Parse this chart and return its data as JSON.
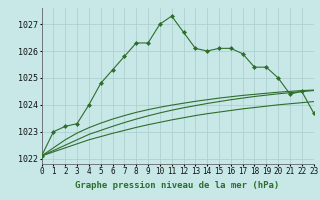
{
  "title": "Graphe pression niveau de la mer (hPa)",
  "background_color": "#c8e8e8",
  "grid_color": "#aacccc",
  "line_color": "#2d6e2d",
  "hours": [
    0,
    1,
    2,
    3,
    4,
    5,
    6,
    7,
    8,
    9,
    10,
    11,
    12,
    13,
    14,
    15,
    16,
    17,
    18,
    19,
    20,
    21,
    22,
    23
  ],
  "line_main": [
    1022.1,
    1023.0,
    1023.2,
    1023.3,
    1024.0,
    1024.8,
    1025.3,
    1025.8,
    1026.3,
    1026.3,
    1027.0,
    1027.3,
    1026.7,
    1026.1,
    1026.0,
    1026.1,
    1026.1,
    1025.9,
    1025.4,
    1025.4,
    1025.0,
    1024.4,
    1024.5,
    1023.7
  ],
  "line_ref1": [
    1022.1,
    1022.25,
    1022.4,
    1022.55,
    1022.7,
    1022.82,
    1022.94,
    1023.05,
    1023.16,
    1023.26,
    1023.35,
    1023.44,
    1023.52,
    1023.6,
    1023.67,
    1023.73,
    1023.79,
    1023.85,
    1023.9,
    1023.95,
    1024.0,
    1024.04,
    1024.08,
    1024.12
  ],
  "line_ref2": [
    1022.1,
    1022.3,
    1022.5,
    1022.7,
    1022.9,
    1023.05,
    1023.2,
    1023.34,
    1023.47,
    1023.59,
    1023.7,
    1023.8,
    1023.89,
    1023.97,
    1024.05,
    1024.12,
    1024.19,
    1024.25,
    1024.31,
    1024.36,
    1024.41,
    1024.45,
    1024.49,
    1024.53
  ],
  "line_ref3": [
    1022.1,
    1022.4,
    1022.7,
    1022.95,
    1023.15,
    1023.32,
    1023.47,
    1023.6,
    1023.72,
    1023.82,
    1023.91,
    1023.99,
    1024.06,
    1024.13,
    1024.19,
    1024.25,
    1024.3,
    1024.35,
    1024.39,
    1024.43,
    1024.47,
    1024.5,
    1024.53,
    1024.55
  ],
  "ylim": [
    1021.8,
    1027.6
  ],
  "yticks": [
    1022,
    1023,
    1024,
    1025,
    1026,
    1027
  ],
  "xlim": [
    0,
    23
  ],
  "xticks": [
    0,
    1,
    2,
    3,
    4,
    5,
    6,
    7,
    8,
    9,
    10,
    11,
    12,
    13,
    14,
    15,
    16,
    17,
    18,
    19,
    20,
    21,
    22,
    23
  ],
  "title_fontsize": 6.5,
  "tick_fontsize": 5.5,
  "marker": "D",
  "markersize": 2.0,
  "linewidth": 0.8
}
